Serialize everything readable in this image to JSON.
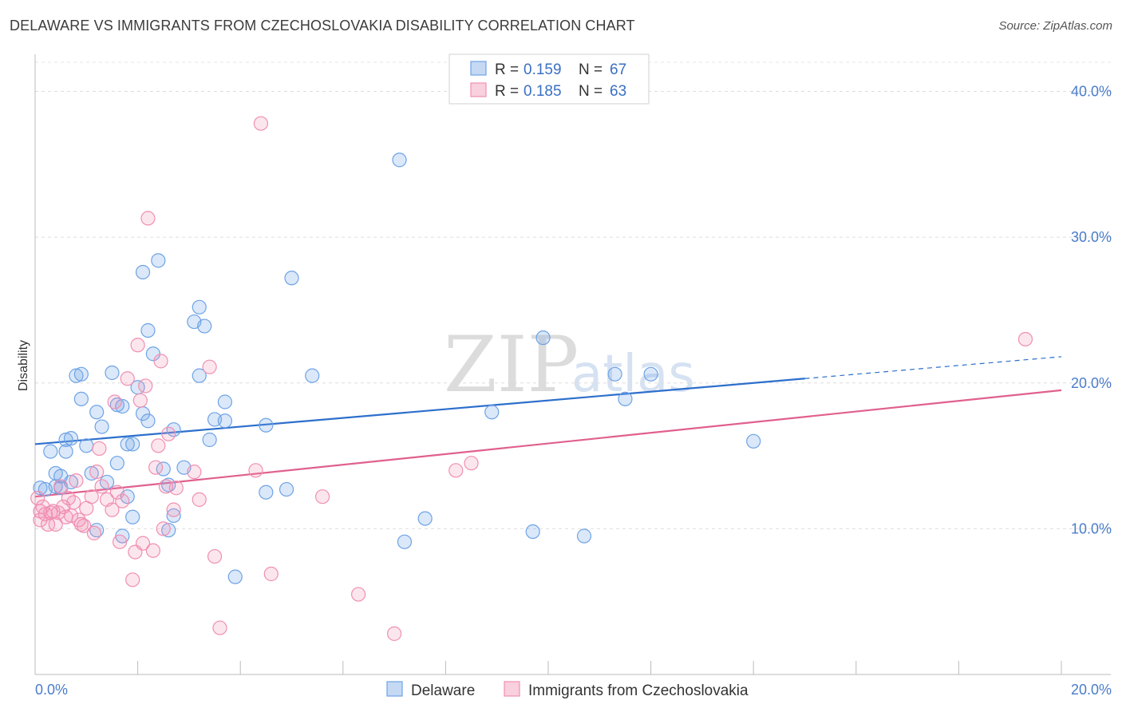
{
  "title": "DELAWARE VS IMMIGRANTS FROM CZECHOSLOVAKIA DISABILITY CORRELATION CHART",
  "source": "Source: ZipAtlas.com",
  "watermark": {
    "zip": "ZIP",
    "atlas": "atlas"
  },
  "legend": {
    "r_label": "R =",
    "n_label": "N =",
    "rows": [
      {
        "r": "0.159",
        "n": "67",
        "color": "#6ea3e6"
      },
      {
        "r": "0.185",
        "n": "63",
        "color": "#f08fb1"
      }
    ]
  },
  "bottom_legend": [
    "Delaware",
    "Immigrants from Czechoslovakia"
  ],
  "chart_data": {
    "type": "scatter",
    "title": "DELAWARE VS IMMIGRANTS FROM CZECHOSLOVAKIA DISABILITY CORRELATION CHART",
    "xlabel": "",
    "ylabel": "Disability",
    "xlim": [
      0,
      20
    ],
    "ylim": [
      0,
      42
    ],
    "x_tick_labels": [
      "0.0%",
      "20.0%"
    ],
    "y_ticks": [
      10,
      20,
      30,
      40
    ],
    "y_tick_labels": [
      "10.0%",
      "20.0%",
      "30.0%",
      "40.0%"
    ],
    "grid": true,
    "legend_position": "top-center",
    "series": [
      {
        "name": "Delaware",
        "color": "#6ea3e6",
        "line_color": "#2d6fcc",
        "R": 0.159,
        "N": 67,
        "trend": {
          "x0": 0,
          "y0": 15.8,
          "x1": 15.0,
          "y1": 20.3,
          "dash_to": 20,
          "dash_y": 21.8
        },
        "points": [
          [
            0.1,
            12.8
          ],
          [
            0.2,
            12.7
          ],
          [
            0.3,
            15.3
          ],
          [
            0.4,
            12.9
          ],
          [
            0.4,
            13.8
          ],
          [
            0.5,
            13.6
          ],
          [
            0.5,
            12.8
          ],
          [
            0.6,
            16.1
          ],
          [
            0.6,
            15.3
          ],
          [
            0.7,
            16.2
          ],
          [
            0.7,
            13.2
          ],
          [
            0.8,
            20.5
          ],
          [
            0.9,
            20.6
          ],
          [
            0.9,
            18.9
          ],
          [
            1.0,
            15.7
          ],
          [
            1.1,
            13.8
          ],
          [
            1.2,
            9.9
          ],
          [
            1.2,
            18.0
          ],
          [
            1.3,
            17.0
          ],
          [
            1.4,
            13.2
          ],
          [
            1.5,
            20.7
          ],
          [
            1.6,
            18.5
          ],
          [
            1.6,
            14.5
          ],
          [
            1.7,
            18.4
          ],
          [
            1.7,
            9.5
          ],
          [
            1.8,
            12.2
          ],
          [
            1.8,
            15.8
          ],
          [
            1.9,
            10.8
          ],
          [
            1.9,
            15.8
          ],
          [
            2.0,
            19.7
          ],
          [
            2.1,
            17.9
          ],
          [
            2.1,
            27.6
          ],
          [
            2.2,
            17.4
          ],
          [
            2.2,
            23.6
          ],
          [
            2.3,
            22.0
          ],
          [
            2.4,
            28.4
          ],
          [
            2.5,
            14.1
          ],
          [
            2.6,
            9.9
          ],
          [
            2.6,
            13.0
          ],
          [
            2.7,
            10.9
          ],
          [
            2.7,
            16.8
          ],
          [
            2.9,
            14.2
          ],
          [
            3.1,
            24.2
          ],
          [
            3.2,
            25.2
          ],
          [
            3.2,
            20.5
          ],
          [
            3.3,
            23.9
          ],
          [
            3.4,
            16.1
          ],
          [
            3.5,
            17.5
          ],
          [
            3.7,
            18.7
          ],
          [
            3.7,
            17.4
          ],
          [
            3.9,
            6.7
          ],
          [
            4.5,
            17.1
          ],
          [
            4.5,
            12.5
          ],
          [
            4.9,
            12.7
          ],
          [
            5.0,
            27.2
          ],
          [
            5.4,
            20.5
          ],
          [
            7.1,
            35.3
          ],
          [
            7.2,
            9.1
          ],
          [
            7.6,
            10.7
          ],
          [
            8.9,
            18.0
          ],
          [
            9.7,
            9.8
          ],
          [
            9.9,
            23.1
          ],
          [
            10.7,
            9.5
          ],
          [
            11.3,
            20.6
          ],
          [
            11.5,
            18.9
          ],
          [
            12.0,
            20.6
          ],
          [
            14.0,
            16.0
          ]
        ]
      },
      {
        "name": "Immigrants from Czechoslovakia",
        "color": "#f08fb1",
        "line_color": "#e0608e",
        "R": 0.185,
        "N": 63,
        "trend": {
          "x0": 0,
          "y0": 12.2,
          "x1": 20,
          "y1": 19.5
        },
        "points": [
          [
            0.05,
            12.1
          ],
          [
            0.1,
            10.6
          ],
          [
            0.1,
            11.2
          ],
          [
            0.15,
            11.5
          ],
          [
            0.2,
            11.0
          ],
          [
            0.25,
            10.3
          ],
          [
            0.3,
            11.1
          ],
          [
            0.35,
            11.2
          ],
          [
            0.4,
            10.3
          ],
          [
            0.45,
            11.1
          ],
          [
            0.5,
            12.9
          ],
          [
            0.55,
            11.5
          ],
          [
            0.6,
            10.8
          ],
          [
            0.65,
            12.1
          ],
          [
            0.7,
            10.9
          ],
          [
            0.75,
            11.8
          ],
          [
            0.8,
            13.3
          ],
          [
            0.85,
            10.6
          ],
          [
            0.9,
            10.3
          ],
          [
            0.95,
            10.2
          ],
          [
            1.0,
            11.4
          ],
          [
            1.1,
            12.2
          ],
          [
            1.15,
            9.7
          ],
          [
            1.2,
            13.9
          ],
          [
            1.25,
            15.5
          ],
          [
            1.3,
            12.9
          ],
          [
            1.4,
            12.0
          ],
          [
            1.5,
            11.3
          ],
          [
            1.55,
            18.7
          ],
          [
            1.6,
            12.5
          ],
          [
            1.65,
            9.1
          ],
          [
            1.7,
            11.9
          ],
          [
            1.8,
            20.3
          ],
          [
            1.9,
            6.5
          ],
          [
            1.95,
            8.4
          ],
          [
            2.0,
            22.6
          ],
          [
            2.05,
            18.8
          ],
          [
            2.1,
            9.0
          ],
          [
            2.15,
            19.8
          ],
          [
            2.2,
            31.3
          ],
          [
            2.3,
            8.5
          ],
          [
            2.35,
            14.2
          ],
          [
            2.4,
            15.7
          ],
          [
            2.45,
            21.5
          ],
          [
            2.5,
            10.0
          ],
          [
            2.55,
            12.9
          ],
          [
            2.6,
            16.5
          ],
          [
            2.7,
            11.3
          ],
          [
            2.75,
            12.8
          ],
          [
            3.1,
            13.9
          ],
          [
            3.2,
            12.0
          ],
          [
            3.4,
            21.1
          ],
          [
            3.5,
            8.1
          ],
          [
            3.6,
            3.2
          ],
          [
            4.3,
            14.0
          ],
          [
            4.6,
            6.9
          ],
          [
            4.4,
            37.8
          ],
          [
            5.6,
            12.2
          ],
          [
            6.3,
            5.5
          ],
          [
            7.0,
            2.8
          ],
          [
            8.2,
            14.0
          ],
          [
            8.5,
            14.5
          ],
          [
            19.3,
            23.0
          ]
        ]
      }
    ]
  }
}
